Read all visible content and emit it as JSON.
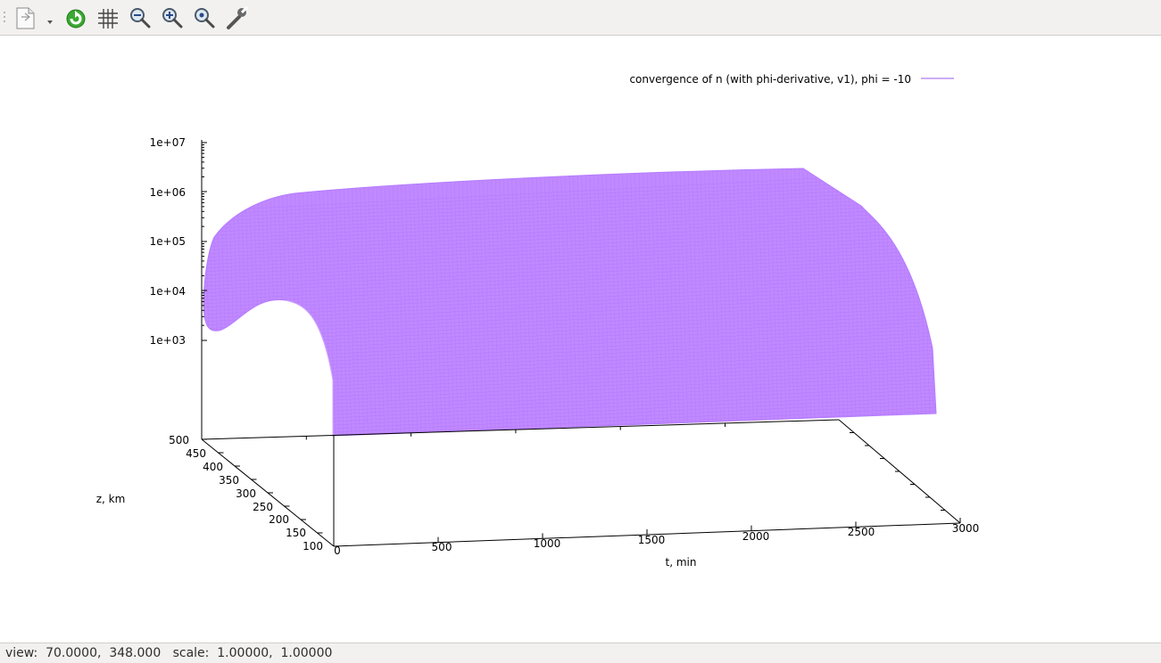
{
  "toolbar": {
    "items": [
      {
        "name": "export-icon"
      },
      {
        "name": "export-dropdown-icon"
      },
      {
        "name": "replot-icon"
      },
      {
        "name": "grid-icon"
      },
      {
        "name": "zoom-out-icon"
      },
      {
        "name": "zoom-in-icon"
      },
      {
        "name": "zoom-fit-icon"
      },
      {
        "name": "settings-wrench-icon"
      }
    ]
  },
  "status": {
    "text": "view:  70.0000,  348.000   scale:  1.00000,  1.00000"
  },
  "colors": {
    "surface": "#c089ff",
    "surface_line": "#b57bff",
    "surface_edge": "#d3a6ff",
    "legend_line": "#9b59f0"
  },
  "chart_data": {
    "type": "surface3d",
    "title": "",
    "legend": {
      "entries": [
        "convergence of n (with phi-derivative, v1), phi = -10"
      ],
      "placement": "top-right"
    },
    "xlabel": "t, min",
    "ylabel": "z, km",
    "zlabel": "",
    "x_ticks": [
      "0",
      "500",
      "1000",
      "1500",
      "2000",
      "2500",
      "3000"
    ],
    "y_ticks": [
      "100",
      "150",
      "200",
      "250",
      "300",
      "350",
      "400",
      "450",
      "500"
    ],
    "z_ticks": [
      "1e+03",
      "1e+04",
      "1e+05",
      "1e+06",
      "1e+07"
    ],
    "xlim": [
      0,
      3000
    ],
    "ylim": [
      100,
      500
    ],
    "zscale": "log",
    "view": {
      "rot_x": 70,
      "rot_z": 348
    },
    "scale": [
      1,
      1
    ],
    "grid": false
  }
}
